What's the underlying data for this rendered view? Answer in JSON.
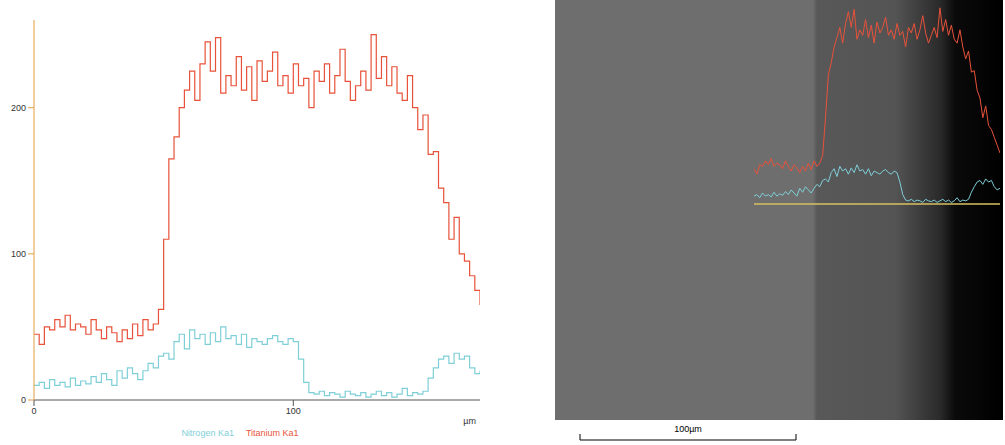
{
  "chart_data": {
    "type": "line",
    "line_style": "step",
    "x_label": "µm",
    "x": [
      0,
      2,
      4,
      6,
      8,
      10,
      12,
      14,
      16,
      18,
      20,
      22,
      24,
      26,
      28,
      30,
      32,
      34,
      36,
      38,
      40,
      42,
      44,
      46,
      48,
      50,
      52,
      54,
      56,
      58,
      60,
      62,
      64,
      66,
      68,
      70,
      72,
      74,
      76,
      78,
      80,
      82,
      84,
      86,
      88,
      90,
      92,
      94,
      96,
      98,
      100,
      102,
      104,
      106,
      108,
      110,
      112,
      114,
      116,
      118,
      120,
      122,
      124,
      126,
      128,
      130,
      132,
      134,
      136,
      138,
      140,
      142,
      144,
      146,
      148,
      150,
      152,
      154,
      156,
      158,
      160,
      162,
      164,
      166,
      168,
      170,
      172
    ],
    "series": [
      {
        "name": "Nitrogen Ka1",
        "color": "#7fcfd8",
        "values": [
          10,
          12,
          8,
          14,
          10,
          12,
          9,
          15,
          10,
          13,
          11,
          16,
          12,
          18,
          14,
          10,
          20,
          15,
          22,
          18,
          14,
          20,
          25,
          22,
          30,
          32,
          28,
          40,
          45,
          35,
          48,
          42,
          45,
          38,
          46,
          40,
          50,
          42,
          44,
          38,
          45,
          36,
          42,
          40,
          38,
          42,
          44,
          40,
          38,
          42,
          40,
          28,
          12,
          5,
          4,
          6,
          3,
          5,
          4,
          2,
          6,
          4,
          3,
          5,
          2,
          4,
          6,
          3,
          5,
          2,
          4,
          8,
          3,
          5,
          4,
          6,
          15,
          22,
          28,
          30,
          25,
          32,
          28,
          30,
          22,
          18,
          20
        ]
      },
      {
        "name": "Titanium Ka1",
        "color": "#e8523a",
        "values": [
          45,
          38,
          50,
          48,
          55,
          50,
          58,
          48,
          52,
          50,
          45,
          55,
          48,
          42,
          50,
          46,
          40,
          48,
          42,
          52,
          44,
          55,
          48,
          52,
          62,
          110,
          165,
          180,
          200,
          212,
          225,
          205,
          230,
          245,
          225,
          248,
          210,
          222,
          215,
          235,
          212,
          228,
          205,
          232,
          218,
          225,
          238,
          215,
          222,
          210,
          230,
          215,
          220,
          200,
          225,
          218,
          230,
          210,
          222,
          240,
          218,
          205,
          215,
          225,
          212,
          250,
          220,
          235,
          215,
          228,
          210,
          205,
          222,
          200,
          185,
          195,
          168,
          170,
          145,
          135,
          110,
          125,
          100,
          95,
          85,
          75,
          65
        ]
      }
    ],
    "xlim": [
      0,
      172
    ],
    "xticks": [
      0,
      100
    ],
    "ylim": [
      0,
      260
    ],
    "yticks": [
      0,
      100,
      200
    ],
    "grid": false,
    "legend": "bottom"
  },
  "image": {
    "scale_bar_label": "100µm"
  }
}
